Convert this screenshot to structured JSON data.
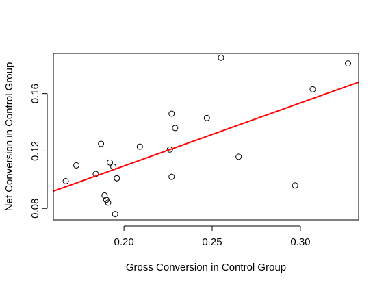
{
  "chart_data": {
    "type": "scatter",
    "xlabel": "Gross Conversion in Control Group",
    "ylabel": "Net Conversion in Control Group",
    "xlim": [
      0.16,
      0.333
    ],
    "ylim": [
      0.072,
      0.188
    ],
    "x_ticks": [
      "0.20",
      "0.25",
      "0.30"
    ],
    "y_ticks": [
      "0.08",
      "0.12",
      "0.16"
    ],
    "grid": false,
    "colors": {
      "points": "#000000",
      "fit_line": "#ff0000"
    },
    "points": [
      {
        "x": 0.167,
        "y": 0.099
      },
      {
        "x": 0.173,
        "y": 0.11
      },
      {
        "x": 0.184,
        "y": 0.104
      },
      {
        "x": 0.187,
        "y": 0.125
      },
      {
        "x": 0.189,
        "y": 0.089
      },
      {
        "x": 0.19,
        "y": 0.086
      },
      {
        "x": 0.191,
        "y": 0.084
      },
      {
        "x": 0.192,
        "y": 0.112
      },
      {
        "x": 0.194,
        "y": 0.109
      },
      {
        "x": 0.195,
        "y": 0.076
      },
      {
        "x": 0.196,
        "y": 0.101
      },
      {
        "x": 0.196,
        "y": 0.101
      },
      {
        "x": 0.209,
        "y": 0.123
      },
      {
        "x": 0.226,
        "y": 0.121
      },
      {
        "x": 0.227,
        "y": 0.146
      },
      {
        "x": 0.227,
        "y": 0.102
      },
      {
        "x": 0.229,
        "y": 0.136
      },
      {
        "x": 0.247,
        "y": 0.143
      },
      {
        "x": 0.255,
        "y": 0.185
      },
      {
        "x": 0.265,
        "y": 0.116
      },
      {
        "x": 0.297,
        "y": 0.096
      },
      {
        "x": 0.307,
        "y": 0.163
      },
      {
        "x": 0.327,
        "y": 0.181
      }
    ],
    "fit_line": {
      "x": [
        0.16,
        0.333
      ],
      "y": [
        0.092,
        0.168
      ]
    }
  }
}
